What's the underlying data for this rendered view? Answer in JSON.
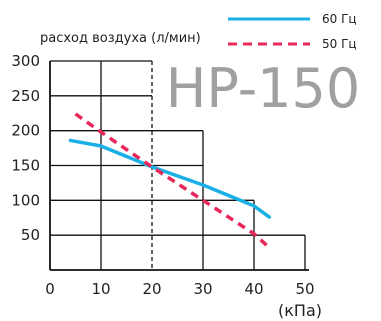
{
  "chart_data": {
    "type": "line",
    "title": "",
    "model_label": "HP-150",
    "ylabel": "расход воздуха (л/мин)",
    "xlabel": "(кПа)",
    "xlim": [
      0,
      50
    ],
    "ylim": [
      0,
      300
    ],
    "x_ticks": [
      0,
      10,
      20,
      30,
      40,
      50
    ],
    "y_ticks": [
      50,
      100,
      150,
      200,
      250,
      300
    ],
    "x_tick_labels": [
      "0",
      "10",
      "20",
      "30",
      "40",
      "50"
    ],
    "y_tick_labels": [
      "50",
      "100",
      "150",
      "200",
      "250",
      "300"
    ],
    "legend_position": "top-right",
    "series": [
      {
        "name": "60 Гц",
        "color": "#1ab0e6",
        "style": "solid",
        "x": [
          4,
          10,
          20,
          30,
          40,
          43
        ],
        "y": [
          186,
          178,
          148,
          122,
          92,
          76
        ]
      },
      {
        "name": "50 Гц",
        "color": "#e8285a",
        "style": "dashed",
        "x": [
          5,
          10,
          20,
          30,
          40,
          43
        ],
        "y": [
          224,
          198,
          148,
          100,
          52,
          32
        ]
      }
    ]
  }
}
